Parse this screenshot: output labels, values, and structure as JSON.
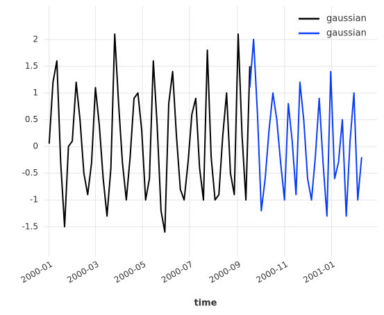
{
  "chart_data": {
    "type": "line",
    "xlabel": "time",
    "xlim": [
      "1999-12-25",
      "2001-03-01"
    ],
    "ylim": [
      -2.06,
      2.62
    ],
    "xticks": [
      {
        "value": "2000-01-01",
        "label": "2000-01"
      },
      {
        "value": "2000-03-01",
        "label": "2000-03"
      },
      {
        "value": "2000-05-01",
        "label": "2000-05"
      },
      {
        "value": "2000-07-01",
        "label": "2000-07"
      },
      {
        "value": "2000-09-01",
        "label": "2000-09"
      },
      {
        "value": "2000-11-01",
        "label": "2000-11"
      },
      {
        "value": "2001-01-01",
        "label": "2001-01"
      }
    ],
    "yticks": [
      -1.5,
      -1.0,
      -0.5,
      0.0,
      0.5,
      1.0,
      1.5,
      2.0
    ],
    "grid": true,
    "legend": "upper right",
    "series": [
      {
        "name": "gaussian",
        "color": "#000000",
        "x": [
          "2000-01-01",
          "2000-01-06",
          "2000-01-11",
          "2000-01-16",
          "2000-01-21",
          "2000-01-26",
          "2000-01-31",
          "2000-02-05",
          "2000-02-10",
          "2000-02-15",
          "2000-02-20",
          "2000-02-25",
          "2000-03-01",
          "2000-03-06",
          "2000-03-11",
          "2000-03-16",
          "2000-03-21",
          "2000-03-26",
          "2000-03-31",
          "2000-04-05",
          "2000-04-10",
          "2000-04-15",
          "2000-04-20",
          "2000-04-25",
          "2000-04-30",
          "2000-05-05",
          "2000-05-10",
          "2000-05-15",
          "2000-05-20",
          "2000-05-25",
          "2000-05-30",
          "2000-06-04",
          "2000-06-09",
          "2000-06-14",
          "2000-06-19",
          "2000-06-24",
          "2000-06-29",
          "2000-07-04",
          "2000-07-09",
          "2000-07-14",
          "2000-07-19",
          "2000-07-24",
          "2000-07-29",
          "2000-08-03",
          "2000-08-08",
          "2000-08-13",
          "2000-08-18",
          "2000-08-23",
          "2000-08-28",
          "2000-09-02",
          "2000-09-07",
          "2000-09-12",
          "2000-09-17"
        ],
        "values": [
          0.05,
          1.2,
          1.6,
          -0.3,
          -1.5,
          0.0,
          0.1,
          1.2,
          0.5,
          -0.5,
          -0.9,
          -0.3,
          1.1,
          0.4,
          -0.6,
          -1.3,
          -0.4,
          2.1,
          0.8,
          -0.3,
          -1.0,
          -0.2,
          0.9,
          1.0,
          0.3,
          -1.0,
          -0.6,
          1.6,
          0.4,
          -1.2,
          -1.6,
          0.8,
          1.4,
          0.2,
          -0.8,
          -1.0,
          -0.3,
          0.6,
          0.9,
          -0.4,
          -1.0,
          1.8,
          -0.2,
          -1.0,
          -0.9,
          0.2,
          1.0,
          -0.5,
          -0.9,
          2.1,
          0.2,
          -1.0,
          1.5
        ]
      },
      {
        "name": "gaussian",
        "color": "#0a3cf5",
        "x": [
          "2000-09-17",
          "2000-09-22",
          "2000-09-27",
          "2000-10-02",
          "2000-10-07",
          "2000-10-12",
          "2000-10-17",
          "2000-10-22",
          "2000-10-27",
          "2000-11-01",
          "2000-11-06",
          "2000-11-11",
          "2000-11-16",
          "2000-11-21",
          "2000-11-26",
          "2000-12-01",
          "2000-12-06",
          "2000-12-11",
          "2000-12-16",
          "2000-12-21",
          "2000-12-26",
          "2000-12-31",
          "2001-01-05",
          "2001-01-10",
          "2001-01-15",
          "2001-01-20",
          "2001-01-25",
          "2001-01-30",
          "2001-02-04",
          "2001-02-09"
        ],
        "values": [
          1.1,
          2.0,
          0.6,
          -1.2,
          -0.6,
          0.3,
          1.0,
          0.5,
          -0.3,
          -1.0,
          0.8,
          0.1,
          -0.9,
          1.2,
          0.5,
          -0.6,
          -1.0,
          -0.2,
          0.9,
          -0.3,
          -1.3,
          1.4,
          -0.6,
          -0.3,
          0.5,
          -1.3,
          0.1,
          1.0,
          -1.0,
          -0.2
        ]
      }
    ]
  }
}
